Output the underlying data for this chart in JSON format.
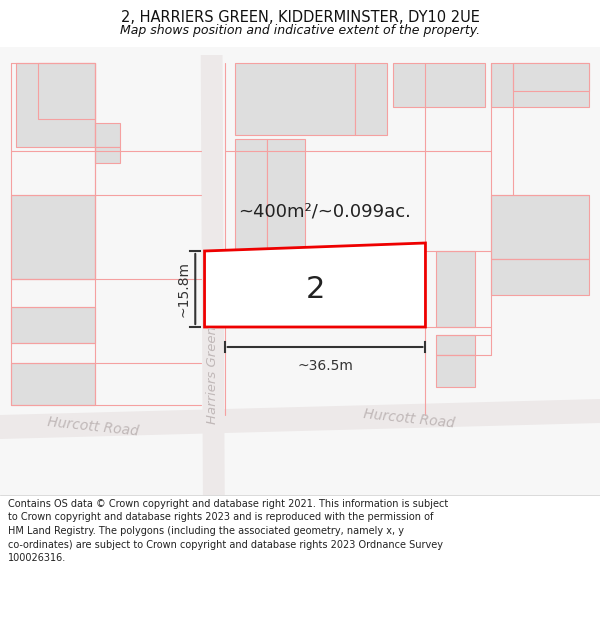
{
  "title": "2, HARRIERS GREEN, KIDDERMINSTER, DY10 2UE",
  "subtitle": "Map shows position and indicative extent of the property.",
  "footer": "Contains OS data © Crown copyright and database right 2021. This information is subject to Crown copyright and database rights 2023 and is reproduced with the permission of HM Land Registry. The polygons (including the associated geometry, namely x, y co-ordinates) are subject to Crown copyright and database rights 2023 Ordnance Survey 100026316.",
  "map_bg": "#ffffff",
  "building_fill": "#dedede",
  "pink_outline": "#f5a0a0",
  "red_rect_color": "#ee0000",
  "dim_line_color": "#333333",
  "area_label": "~400m²/~0.099ac.",
  "width_label": "~36.5m",
  "height_label": "~15.8m",
  "house_number": "2",
  "road_name_green": "Harriers Green",
  "road_name_hurcott1": "Hurcott Road",
  "road_name_hurcott2": "Hurcott Road"
}
